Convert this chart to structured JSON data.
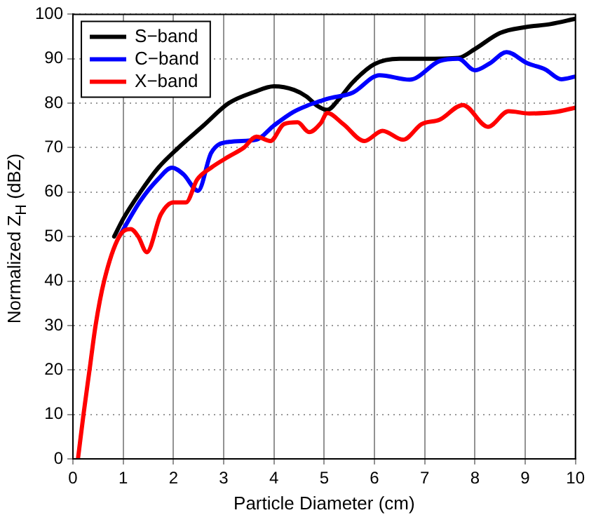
{
  "chart_data": {
    "type": "line",
    "xlabel": "Particle Diameter (cm)",
    "ylabel": "Normalized Z$_{H}$ (dBZ)",
    "xlim": [
      0,
      10
    ],
    "xticks": [
      0,
      1,
      2,
      3,
      4,
      5,
      6,
      7,
      8,
      9,
      10
    ],
    "ylim": [
      0,
      100
    ],
    "yticks": [
      0,
      10,
      20,
      30,
      40,
      50,
      60,
      70,
      80,
      90,
      100
    ],
    "grid": true,
    "legend": "top left",
    "marker": "none",
    "line_style": "solid",
    "series": [
      {
        "name": "S−band",
        "color": "#000000",
        "x": [
          0.82,
          1.0,
          1.34,
          1.7,
          2.1,
          2.6,
          3.1,
          3.6,
          4.0,
          4.4,
          4.65,
          4.85,
          5.06,
          5.3,
          5.56,
          6.0,
          6.5,
          7.0,
          7.67,
          8.0,
          8.5,
          9.0,
          9.5,
          10.0
        ],
        "values": [
          50,
          54,
          60,
          65.5,
          70,
          75,
          80,
          82.5,
          83.8,
          83,
          81.5,
          79.5,
          78.5,
          81,
          84.6,
          88.8,
          90,
          90,
          90.2,
          92.2,
          95.8,
          97.1,
          97.8,
          99
        ]
      },
      {
        "name": "C−band",
        "color": "#0000ff",
        "x": [
          0.92,
          1.34,
          1.7,
          1.97,
          2.2,
          2.49,
          2.75,
          3.1,
          3.65,
          4.0,
          4.38,
          4.67,
          4.93,
          5.06,
          5.57,
          6.1,
          6.7,
          7.3,
          7.67,
          8.0,
          8.3,
          8.63,
          9.04,
          9.4,
          9.72,
          10.0
        ],
        "values": [
          50,
          58,
          63,
          65.5,
          64,
          60.3,
          68.8,
          71.3,
          71.8,
          75,
          78,
          79.5,
          80.5,
          81,
          82.4,
          86.3,
          85.3,
          89.5,
          90,
          87.4,
          89,
          91.5,
          89,
          87.6,
          85.4,
          86
        ]
      },
      {
        "name": "X−band",
        "color": "#ff0000",
        "x": [
          0.1,
          0.21,
          0.33,
          0.45,
          0.62,
          0.92,
          1.15,
          1.3,
          1.47,
          1.75,
          2.0,
          2.25,
          2.47,
          2.75,
          3.1,
          3.4,
          3.65,
          3.93,
          4.2,
          4.47,
          4.7,
          4.93,
          5.06,
          5.38,
          5.8,
          6.16,
          6.57,
          6.94,
          7.3,
          7.76,
          8.26,
          8.67,
          9.08,
          9.58,
          10.0
        ],
        "values": [
          0,
          10,
          20,
          30,
          40,
          50,
          51.7,
          50,
          46.5,
          55,
          57.7,
          57.7,
          62.8,
          65.5,
          68,
          70,
          72.5,
          71.5,
          75.3,
          75.7,
          73.5,
          75.5,
          77.8,
          75.3,
          71.5,
          73.8,
          71.8,
          75.3,
          76.3,
          79.6,
          74.7,
          78.2,
          77.7,
          78,
          79
        ]
      }
    ]
  }
}
